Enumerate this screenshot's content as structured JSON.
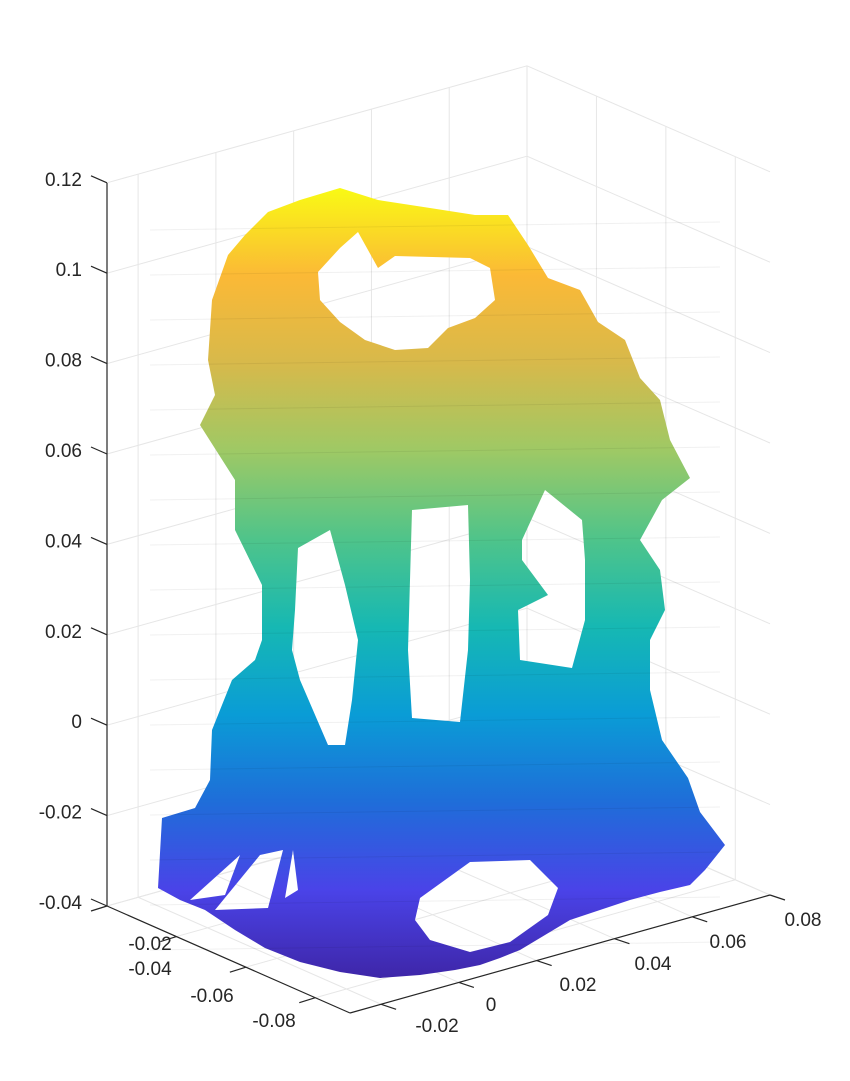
{
  "chart_data": {
    "type": "surface3d",
    "title": "",
    "xlabel": "",
    "ylabel": "",
    "zlabel": "",
    "grid": true,
    "colormap": "parula",
    "colormap_stops": [
      "#3e26a8",
      "#4a43e8",
      "#1f6dd9",
      "#0a9cd6",
      "#16b8b3",
      "#4fc48a",
      "#9ec965",
      "#d7b94b",
      "#fbb936",
      "#f9fa14"
    ],
    "xlim": [
      -0.02,
      0.08
    ],
    "ylim": [
      -0.09,
      -0.02
    ],
    "zlim": [
      -0.04,
      0.12
    ],
    "z_ticks": [
      {
        "value": -0.04,
        "label": "-0.04"
      },
      {
        "value": -0.02,
        "label": "-0.02"
      },
      {
        "value": 0,
        "label": "0"
      },
      {
        "value": 0.02,
        "label": "0.02"
      },
      {
        "value": 0.04,
        "label": "0.04"
      },
      {
        "value": 0.06,
        "label": "0.06"
      },
      {
        "value": 0.08,
        "label": "0.08"
      },
      {
        "value": 0.1,
        "label": "0.1"
      },
      {
        "value": 0.12,
        "label": "0.12"
      }
    ],
    "y_ticks": [
      {
        "value": -0.02,
        "label": "-0.02"
      },
      {
        "value": -0.04,
        "label": "-0.04"
      },
      {
        "value": -0.06,
        "label": "-0.06"
      },
      {
        "value": -0.08,
        "label": "-0.08"
      }
    ],
    "x_ticks": [
      {
        "value": -0.02,
        "label": "-0.02"
      },
      {
        "value": 0,
        "label": "0"
      },
      {
        "value": 0.02,
        "label": "0.02"
      },
      {
        "value": 0.04,
        "label": "0.04"
      },
      {
        "value": 0.06,
        "label": "0.06"
      },
      {
        "value": 0.08,
        "label": "0.08"
      }
    ],
    "surface_z_range": [
      -0.039,
      0.116
    ]
  }
}
